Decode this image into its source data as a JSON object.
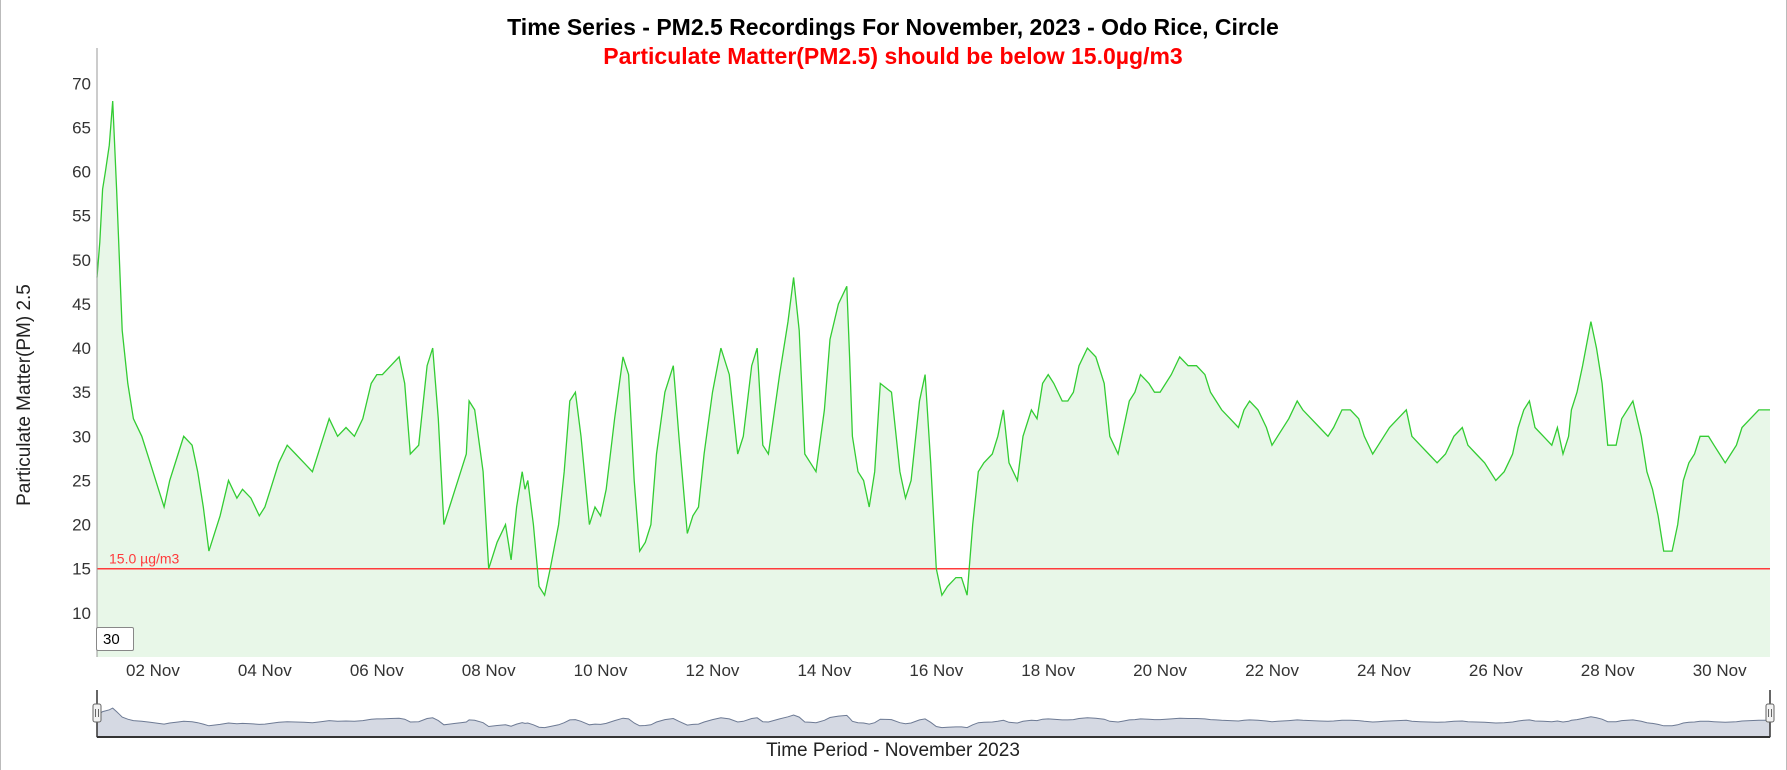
{
  "chart_data": {
    "type": "area",
    "title": "Time Series - PM2.5 Recordings For November, 2023 - Odo Rice, Circle",
    "subtitle": "Particulate Matter(PM2.5) should be below 15.0µg/m3",
    "ylabel": "Particulate Matter(PM) 2.5",
    "xlabel": "Time Period - November 2023",
    "ylim": [
      5,
      74
    ],
    "y_ticks": [
      10,
      15,
      20,
      25,
      30,
      35,
      40,
      45,
      50,
      55,
      60,
      65,
      70
    ],
    "x_range_days": [
      1,
      30.9
    ],
    "x_ticks": [
      {
        "day": 2,
        "label": "02 Nov"
      },
      {
        "day": 4,
        "label": "04 Nov"
      },
      {
        "day": 6,
        "label": "06 Nov"
      },
      {
        "day": 8,
        "label": "08 Nov"
      },
      {
        "day": 10,
        "label": "10 Nov"
      },
      {
        "day": 12,
        "label": "12 Nov"
      },
      {
        "day": 14,
        "label": "14 Nov"
      },
      {
        "day": 16,
        "label": "16 Nov"
      },
      {
        "day": 18,
        "label": "18 Nov"
      },
      {
        "day": 20,
        "label": "20 Nov"
      },
      {
        "day": 22,
        "label": "22 Nov"
      },
      {
        "day": 24,
        "label": "24 Nov"
      },
      {
        "day": 26,
        "label": "26 Nov"
      },
      {
        "day": 28,
        "label": "28 Nov"
      },
      {
        "day": 30,
        "label": "30 Nov"
      }
    ],
    "threshold": {
      "value": 15.0,
      "label": "15.0 µg/m3",
      "color": "#ff3b3b"
    },
    "line_color": "#33cc33",
    "fill_color": "#e8f7e8",
    "grid": false,
    "rolling_period": "30",
    "series": [
      {
        "x": [
          1.0,
          1.05,
          1.1,
          1.15,
          1.22,
          1.28,
          1.35,
          1.4,
          1.45,
          1.55,
          1.65,
          1.8,
          1.95,
          2.1,
          2.2,
          2.3,
          2.45,
          2.55,
          2.7,
          2.8,
          2.9,
          3.0,
          3.2,
          3.35,
          3.5,
          3.6,
          3.75,
          3.9,
          4.0,
          4.1,
          4.25,
          4.4,
          4.55,
          4.7,
          4.85,
          5.0,
          5.15,
          5.3,
          5.45,
          5.6,
          5.75,
          5.9,
          6.0,
          6.1,
          6.25,
          6.4,
          6.5,
          6.6,
          6.75,
          6.9,
          7.0,
          7.1,
          7.2,
          7.3,
          7.4,
          7.5,
          7.6,
          7.65,
          7.75,
          7.9,
          8.0,
          8.15,
          8.3,
          8.4,
          8.5,
          8.6,
          8.65,
          8.7,
          8.8,
          8.9,
          9.0,
          9.1,
          9.25,
          9.35,
          9.45,
          9.55,
          9.65,
          9.8,
          9.9,
          10.0,
          10.1,
          10.25,
          10.4,
          10.5,
          10.6,
          10.7,
          10.8,
          10.9,
          11.0,
          11.15,
          11.3,
          11.4,
          11.55,
          11.65,
          11.75,
          11.85,
          12.0,
          12.15,
          12.3,
          12.45,
          12.55,
          12.7,
          12.8,
          12.9,
          13.0,
          13.2,
          13.35,
          13.45,
          13.55,
          13.65,
          13.75,
          13.85,
          14.0,
          14.1,
          14.25,
          14.4,
          14.45,
          14.5,
          14.6,
          14.7,
          14.8,
          14.9,
          15.0,
          15.2,
          15.35,
          15.45,
          15.55,
          15.7,
          15.8,
          15.9,
          16.0,
          16.1,
          16.2,
          16.35,
          16.45,
          16.55,
          16.65,
          16.75,
          16.85,
          17.0,
          17.1,
          17.2,
          17.3,
          17.45,
          17.55,
          17.7,
          17.8,
          17.9,
          18.0,
          18.1,
          18.25,
          18.35,
          18.45,
          18.55,
          18.7,
          18.85,
          19.0,
          19.1,
          19.25,
          19.35,
          19.45,
          19.55,
          19.65,
          19.8,
          19.9,
          20.0,
          20.2,
          20.35,
          20.5,
          20.65,
          20.8,
          20.9,
          21.0,
          21.1,
          21.25,
          21.4,
          21.5,
          21.6,
          21.75,
          21.9,
          22.0,
          22.1,
          22.3,
          22.45,
          22.55,
          22.7,
          22.85,
          23.0,
          23.1,
          23.25,
          23.4,
          23.55,
          23.65,
          23.8,
          23.9,
          24.0,
          24.1,
          24.25,
          24.4,
          24.5,
          24.65,
          24.8,
          24.95,
          25.1,
          25.25,
          25.4,
          25.5,
          25.65,
          25.8,
          26.0,
          26.15,
          26.3,
          26.4,
          26.5,
          26.6,
          26.7,
          26.85,
          27.0,
          27.1,
          27.2,
          27.3,
          27.35,
          27.45,
          27.55,
          27.7,
          27.8,
          27.9,
          28.0,
          28.15,
          28.25,
          28.35,
          28.45,
          28.6,
          28.7,
          28.8,
          28.9,
          29.0,
          29.15,
          29.25,
          29.35,
          29.45,
          29.55,
          29.65,
          29.8,
          29.9,
          30.0,
          30.1,
          30.2,
          30.3,
          30.4,
          30.55,
          30.7,
          30.8,
          30.9
        ],
        "values": [
          48,
          52,
          58,
          60,
          63,
          68,
          58,
          50,
          42,
          36,
          32,
          30,
          27,
          24,
          22,
          25,
          28,
          30,
          29,
          26,
          22,
          17,
          21,
          25,
          23,
          24,
          23,
          21,
          22,
          24,
          27,
          29,
          28,
          27,
          26,
          29,
          32,
          30,
          31,
          30,
          32,
          36,
          37,
          37,
          38,
          39,
          36,
          28,
          29,
          38,
          40,
          32,
          20,
          22,
          24,
          26,
          28,
          34,
          33,
          26,
          15,
          18,
          20,
          16,
          22,
          26,
          24,
          25,
          20,
          13,
          12,
          15,
          20,
          26,
          34,
          35,
          30,
          20,
          22,
          21,
          24,
          32,
          39,
          37,
          25,
          17,
          18,
          20,
          28,
          35,
          38,
          30,
          19,
          21,
          22,
          28,
          35,
          40,
          37,
          28,
          30,
          38,
          40,
          29,
          28,
          37,
          43,
          48,
          42,
          28,
          27,
          26,
          33,
          41,
          45,
          47,
          39,
          30,
          26,
          25,
          22,
          26,
          36,
          35,
          26,
          23,
          25,
          34,
          37,
          27,
          15,
          12,
          13,
          14,
          14,
          12,
          20,
          26,
          27,
          28,
          30,
          33,
          27,
          25,
          30,
          33,
          32,
          36,
          37,
          36,
          34,
          34,
          35,
          38,
          40,
          39,
          36,
          30,
          28,
          31,
          34,
          35,
          37,
          36,
          35,
          35,
          37,
          39,
          38,
          38,
          37,
          35,
          34,
          33,
          32,
          31,
          33,
          34,
          33,
          31,
          29,
          30,
          32,
          34,
          33,
          32,
          31,
          30,
          31,
          33,
          33,
          32,
          30,
          28,
          29,
          30,
          31,
          32,
          33,
          30,
          29,
          28,
          27,
          28,
          30,
          31,
          29,
          28,
          27,
          25,
          26,
          28,
          31,
          33,
          34,
          31,
          30,
          29,
          31,
          28,
          30,
          33,
          35,
          38,
          43,
          40,
          36,
          29,
          29,
          32,
          33,
          34,
          30,
          26,
          24,
          21,
          17,
          17,
          20,
          25,
          27,
          28,
          30,
          30,
          29,
          28,
          27,
          28,
          29,
          31,
          32,
          33,
          33,
          33
        ]
      }
    ],
    "navigator": {
      "series_color": "#6d7a94",
      "fill_color": "#d5d9e3"
    }
  }
}
